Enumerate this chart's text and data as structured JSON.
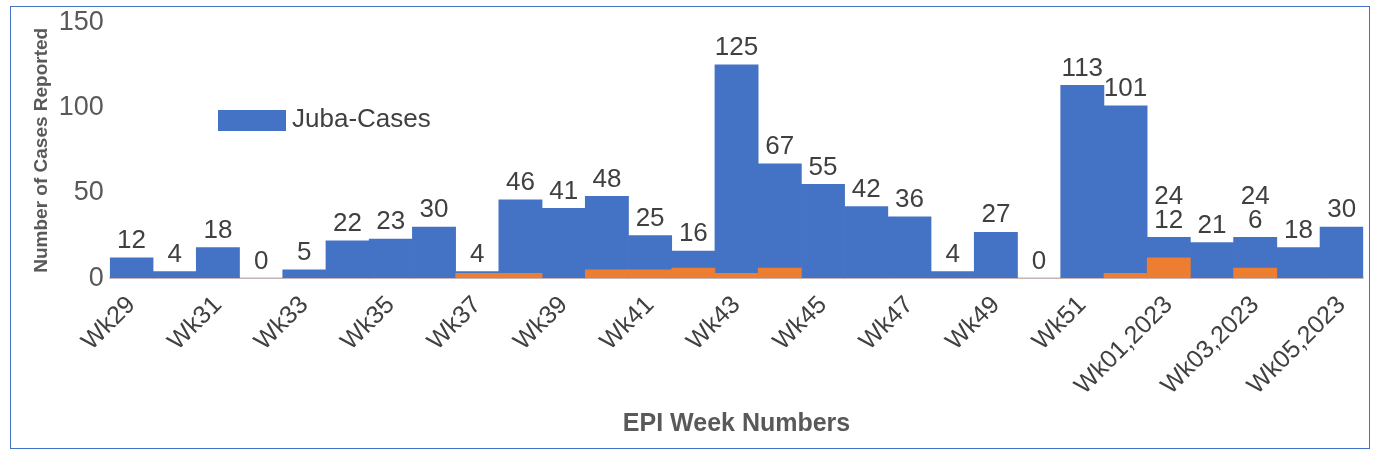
{
  "chart_data": {
    "type": "bar",
    "xlabel": "EPI Week Numbers",
    "ylabel": "Number of Cases Reported",
    "categories": [
      "Wk29",
      null,
      "Wk31",
      null,
      "Wk33",
      null,
      "Wk35",
      null,
      "Wk37",
      null,
      "Wk39",
      null,
      "Wk41",
      null,
      "Wk43",
      null,
      "Wk45",
      null,
      "Wk47",
      null,
      "Wk49",
      null,
      "Wk51",
      null,
      "Wk01,2023",
      null,
      "Wk03,2023",
      null,
      "Wk05,2023"
    ],
    "series": [
      {
        "name": "Juba-Cases",
        "color": "#4472c4",
        "values": [
          12,
          4,
          18,
          0,
          5,
          22,
          23,
          30,
          4,
          46,
          41,
          48,
          25,
          16,
          125,
          67,
          55,
          42,
          36,
          4,
          27,
          0,
          113,
          101,
          24,
          21,
          24,
          18,
          30
        ],
        "value_labels": [
          "12",
          "4",
          "18",
          "0",
          "5",
          "22",
          "23",
          "30",
          "4",
          "46",
          "41",
          "48",
          "25",
          "16",
          "125",
          "67",
          "55",
          "42",
          "36",
          "4",
          "27",
          "0",
          "113",
          "101",
          "24",
          "21",
          "24",
          "18",
          "30"
        ]
      },
      {
        "color": "#ed7d31",
        "values": [
          0,
          0,
          0,
          0,
          0,
          0,
          0,
          0,
          3,
          3,
          0,
          5,
          5,
          6,
          3,
          6,
          0,
          0,
          0,
          0,
          0,
          0,
          0,
          3,
          12,
          0,
          6,
          0,
          0
        ],
        "value_labels": [
          null,
          null,
          null,
          null,
          null,
          null,
          null,
          null,
          null,
          null,
          null,
          null,
          null,
          null,
          null,
          null,
          null,
          null,
          null,
          null,
          null,
          null,
          null,
          null,
          "12",
          null,
          "6",
          null,
          null
        ]
      }
    ],
    "ylim": [
      0,
      150
    ],
    "yticks": [
      0,
      50,
      100,
      150
    ],
    "grid": false,
    "legend": "top left"
  }
}
